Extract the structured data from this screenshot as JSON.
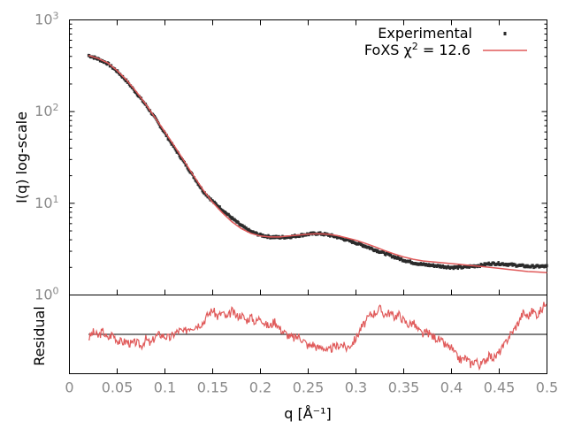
{
  "chart_data": [
    {
      "panel": "main",
      "type": "line",
      "ylog": true,
      "xlim": [
        0,
        0.5
      ],
      "ylim": [
        1,
        1000
      ],
      "xlabel": "",
      "ylabel": "I(q) log-scale",
      "y_tick_bases": [
        "10",
        "10",
        "10",
        "10"
      ],
      "y_tick_exponents": [
        "0",
        "1",
        "2",
        "3"
      ],
      "grid": false,
      "legend_position": "top-right",
      "legend": {
        "experimental_label": "Experimental",
        "fit_label_prefix": "FoXS χ",
        "fit_label_exponent": "2",
        "fit_label_suffix": " = 12.6"
      },
      "colors": {
        "experimental": "#2b2b2b",
        "fit": "#e05a5a",
        "frame": "#000000",
        "ticks": "#8a8a8a"
      },
      "series": [
        {
          "name": "Experimental",
          "style": "points",
          "x": [
            0.02,
            0.03,
            0.04,
            0.05,
            0.06,
            0.07,
            0.08,
            0.09,
            0.1,
            0.11,
            0.12,
            0.13,
            0.14,
            0.15,
            0.16,
            0.17,
            0.18,
            0.19,
            0.2,
            0.21,
            0.22,
            0.23,
            0.24,
            0.25,
            0.26,
            0.27,
            0.28,
            0.29,
            0.3,
            0.31,
            0.32,
            0.33,
            0.34,
            0.35,
            0.36,
            0.37,
            0.38,
            0.39,
            0.4,
            0.41,
            0.42,
            0.43,
            0.44,
            0.45,
            0.46,
            0.47,
            0.48,
            0.49,
            0.5
          ],
          "y": [
            410,
            375,
            335,
            275,
            215,
            160,
            118,
            84,
            58,
            40,
            28,
            19.5,
            13.5,
            10.5,
            8.5,
            6.9,
            5.7,
            4.9,
            4.5,
            4.3,
            4.25,
            4.3,
            4.45,
            4.6,
            4.7,
            4.55,
            4.3,
            4.0,
            3.7,
            3.4,
            3.1,
            2.85,
            2.6,
            2.4,
            2.25,
            2.15,
            2.1,
            2.05,
            2.0,
            2.0,
            2.05,
            2.1,
            2.2,
            2.2,
            2.15,
            2.1,
            2.05,
            2.05,
            2.05
          ]
        },
        {
          "name": "FoXS χ2 = 12.6",
          "style": "line",
          "x": [
            0.02,
            0.03,
            0.04,
            0.05,
            0.06,
            0.07,
            0.08,
            0.09,
            0.1,
            0.11,
            0.12,
            0.13,
            0.14,
            0.15,
            0.16,
            0.17,
            0.18,
            0.19,
            0.2,
            0.21,
            0.22,
            0.23,
            0.24,
            0.25,
            0.26,
            0.27,
            0.28,
            0.29,
            0.3,
            0.31,
            0.32,
            0.33,
            0.34,
            0.35,
            0.36,
            0.37,
            0.38,
            0.39,
            0.4,
            0.41,
            0.42,
            0.43,
            0.44,
            0.45,
            0.46,
            0.47,
            0.48,
            0.49,
            0.5
          ],
          "y": [
            410,
            380,
            340,
            280,
            220,
            165,
            120,
            85,
            60,
            42,
            29,
            20,
            14,
            10.2,
            7.9,
            6.3,
            5.3,
            4.7,
            4.4,
            4.3,
            4.3,
            4.4,
            4.5,
            4.6,
            4.65,
            4.6,
            4.45,
            4.2,
            3.95,
            3.65,
            3.35,
            3.05,
            2.8,
            2.6,
            2.45,
            2.35,
            2.3,
            2.25,
            2.2,
            2.15,
            2.1,
            2.05,
            2.0,
            1.95,
            1.9,
            1.85,
            1.8,
            1.78,
            1.75
          ]
        }
      ]
    },
    {
      "panel": "residual",
      "type": "line",
      "xlim": [
        0,
        0.5
      ],
      "xlabel": "q [Å⁻¹]",
      "ylabel": "Residual",
      "x_ticks": [
        0,
        0.05,
        0.1,
        0.15,
        0.2,
        0.25,
        0.3,
        0.35,
        0.4,
        0.45,
        0.5
      ],
      "x_tick_labels": [
        "0",
        "0.05",
        "0.1",
        "0.15",
        "0.2",
        "0.25",
        "0.3",
        "0.35",
        "0.4",
        "0.45",
        "0.5"
      ],
      "ylim": [
        -1,
        1
      ],
      "zero_line": 0,
      "series": [
        {
          "name": "",
          "x": [
            0.02,
            0.025,
            0.03,
            0.035,
            0.04,
            0.045,
            0.05,
            0.055,
            0.06,
            0.065,
            0.07,
            0.075,
            0.08,
            0.085,
            0.09,
            0.095,
            0.1,
            0.105,
            0.11,
            0.115,
            0.12,
            0.125,
            0.13,
            0.135,
            0.14,
            0.145,
            0.15,
            0.155,
            0.16,
            0.165,
            0.17,
            0.175,
            0.18,
            0.185,
            0.19,
            0.195,
            0.2,
            0.205,
            0.21,
            0.215,
            0.22,
            0.225,
            0.23,
            0.235,
            0.24,
            0.245,
            0.25,
            0.255,
            0.26,
            0.265,
            0.27,
            0.275,
            0.28,
            0.285,
            0.29,
            0.295,
            0.3,
            0.305,
            0.31,
            0.315,
            0.32,
            0.325,
            0.33,
            0.335,
            0.34,
            0.345,
            0.35,
            0.355,
            0.36,
            0.365,
            0.37,
            0.375,
            0.38,
            0.385,
            0.39,
            0.395,
            0.4,
            0.405,
            0.41,
            0.415,
            0.42,
            0.425,
            0.43,
            0.435,
            0.44,
            0.445,
            0.45,
            0.455,
            0.46,
            0.465,
            0.47,
            0.475,
            0.48,
            0.485,
            0.49,
            0.495,
            0.5
          ],
          "y": [
            -0.1,
            0.05,
            -0.05,
            0.08,
            -0.12,
            0.02,
            -0.15,
            -0.2,
            -0.18,
            -0.25,
            -0.2,
            -0.3,
            -0.12,
            -0.25,
            -0.05,
            0.0,
            -0.05,
            -0.1,
            0.02,
            0.1,
            0.05,
            0.18,
            0.2,
            0.25,
            0.3,
            0.5,
            0.62,
            0.45,
            0.55,
            0.4,
            0.6,
            0.45,
            0.5,
            0.35,
            0.45,
            0.3,
            0.45,
            0.25,
            0.2,
            0.35,
            0.15,
            0.05,
            -0.05,
            -0.1,
            -0.05,
            -0.15,
            -0.3,
            -0.25,
            -0.35,
            -0.3,
            -0.45,
            -0.35,
            -0.3,
            -0.25,
            -0.35,
            -0.25,
            -0.1,
            0.15,
            0.3,
            0.5,
            0.55,
            0.65,
            0.5,
            0.55,
            0.45,
            0.5,
            0.35,
            0.25,
            0.3,
            0.1,
            0.0,
            0.05,
            -0.05,
            -0.1,
            -0.2,
            -0.3,
            -0.35,
            -0.55,
            -0.65,
            -0.6,
            -0.75,
            -0.65,
            -0.8,
            -0.65,
            -0.55,
            -0.6,
            -0.45,
            -0.3,
            -0.05,
            0.1,
            0.3,
            0.55,
            0.45,
            0.6,
            0.5,
            0.65,
            0.9
          ]
        }
      ]
    }
  ]
}
